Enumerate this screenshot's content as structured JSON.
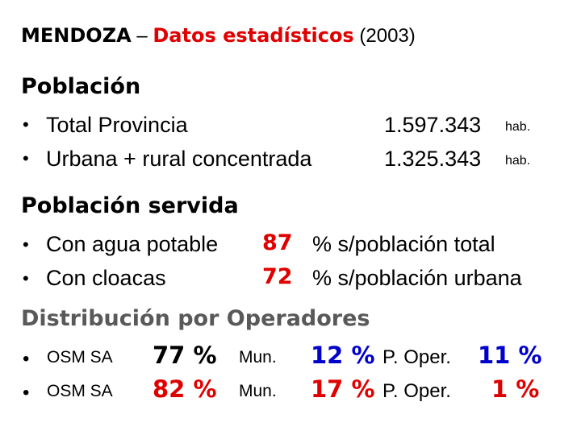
{
  "title": {
    "main": "MENDOZA",
    "dash": "–",
    "subtitle": "Datos estadísticos",
    "year": "(2003)"
  },
  "poblacion": {
    "heading": "Población",
    "rows": [
      {
        "bullet": "•",
        "label": "Total Provincia",
        "value": "1.597.343",
        "unit": "hab."
      },
      {
        "bullet": "•",
        "label": "Urbana + rural concentrada",
        "value": "1.325.343",
        "unit": "hab."
      }
    ]
  },
  "servida": {
    "heading": "Población servida",
    "rows": [
      {
        "bullet": "•",
        "label": "Con agua potable",
        "value": "87",
        "desc": "% s/población total"
      },
      {
        "bullet": "•",
        "label": "Con cloacas",
        "value": "72",
        "desc": "% s/población urbana"
      }
    ]
  },
  "distribucion": {
    "heading": "Distribución por Operadores",
    "rows": [
      {
        "bullet": "•",
        "operator": "OSM SA",
        "osm_pct": "77 %",
        "mun_label": "Mun.",
        "mun_pct": "12 %",
        "poper_label": "P. Oper.",
        "poper_pct": "11 %"
      },
      {
        "bullet": "•",
        "operator": "OSM SA",
        "osm_pct": "82 %",
        "mun_label": "Mun.",
        "mun_pct": "17 %",
        "poper_label": "P. Oper.",
        "poper_pct": "1 %"
      }
    ]
  },
  "colors": {
    "accent_red": "#e00000",
    "accent_blue": "#0000cc",
    "heading_grey": "#595959"
  }
}
